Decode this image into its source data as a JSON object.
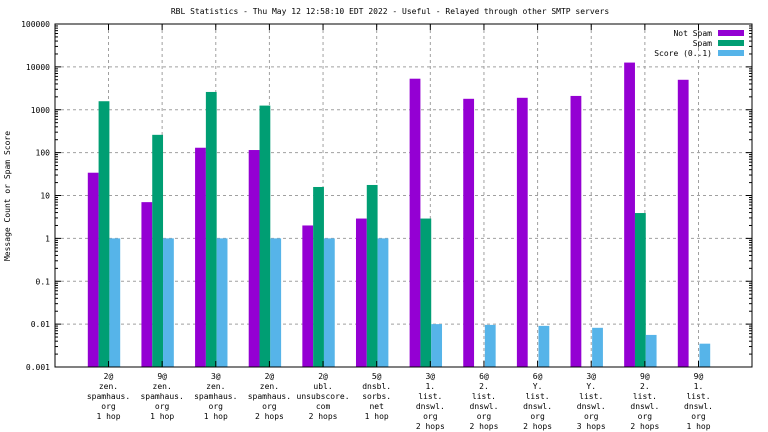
{
  "chart_data": {
    "type": "bar",
    "title": "RBL Statistics - Thu May 12 12:58:10 EDT 2022 - Useful - Relayed through other SMTP servers",
    "xlabel": "",
    "ylabel": "Message Count or Spam Score",
    "yscale": "log",
    "ylim": [
      0.001,
      100000
    ],
    "yticks": [
      "100000",
      "10000",
      "1000",
      "100",
      "10",
      "1",
      "0.1",
      "0.01",
      "0.001"
    ],
    "ytick_values": [
      100000,
      10000,
      1000,
      100,
      10,
      1,
      0.1,
      0.01,
      0.001
    ],
    "grid": true,
    "legend_position": "top-right",
    "categories": [
      [
        "2@",
        "zen.",
        "spamhaus.",
        "org",
        "1 hop"
      ],
      [
        "9@",
        "zen.",
        "spamhaus.",
        "org",
        "1 hop"
      ],
      [
        "3@",
        "zen.",
        "spamhaus.",
        "org",
        "1 hop"
      ],
      [
        "2@",
        "zen.",
        "spamhaus.",
        "org",
        "2 hops"
      ],
      [
        "2@",
        "ubl.",
        "unsubscore.",
        "com",
        "2 hops"
      ],
      [
        "5@",
        "dnsbl.",
        "sorbs.",
        "net",
        "1 hop"
      ],
      [
        "3@",
        "1.",
        "list.",
        "dnswl.",
        "org",
        "2 hops"
      ],
      [
        "6@",
        "2.",
        "list.",
        "dnswl.",
        "org",
        "2 hops"
      ],
      [
        "6@",
        "Y.",
        "list.",
        "dnswl.",
        "org",
        "2 hops"
      ],
      [
        "3@",
        "Y.",
        "list.",
        "dnswl.",
        "org",
        "3 hops"
      ],
      [
        "9@",
        "2.",
        "list.",
        "dnswl.",
        "org",
        "2 hops"
      ],
      [
        "9@",
        "1.",
        "list.",
        "dnswl.",
        "org",
        "1 hop"
      ]
    ],
    "series": [
      {
        "name": "Not Spam",
        "color": "#9400d3",
        "values": [
          34,
          7,
          130,
          115,
          2,
          2.9,
          5300,
          1800,
          1900,
          2100,
          12600,
          5000
        ]
      },
      {
        "name": "Spam",
        "color": "#009e73",
        "values": [
          1580,
          260,
          2600,
          1250,
          15.8,
          17.6,
          2.9,
          null,
          null,
          null,
          3.9,
          null
        ]
      },
      {
        "name": "Score (0..1)",
        "color": "#56b4e9",
        "values": [
          1,
          1,
          1,
          1,
          1,
          1,
          0.01,
          0.0096,
          0.0091,
          0.0082,
          0.0056,
          0.0035
        ]
      }
    ]
  }
}
